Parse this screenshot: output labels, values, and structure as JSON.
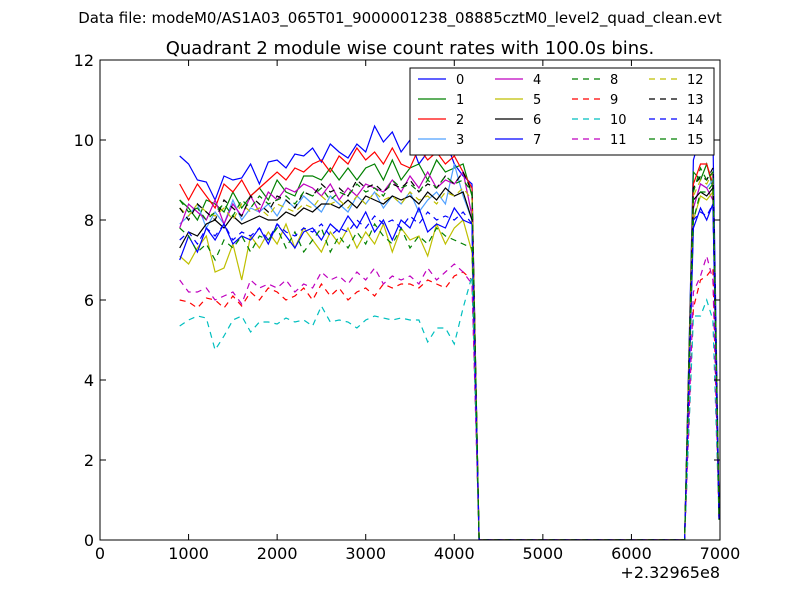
{
  "header": {
    "suptitle": "Data file: modeM0/AS1A03_065T01_9000001238_08885cztM0_level2_quad_clean.evt"
  },
  "chart_data": {
    "type": "line",
    "title": "Quadrant 2 module wise count rates with 100.0s bins.",
    "xlabel": "",
    "ylabel": "",
    "x_offset_label": "+2.32965e8",
    "xlim": [
      0,
      7000
    ],
    "ylim": [
      0,
      12
    ],
    "xticks": [
      0,
      1000,
      2000,
      3000,
      4000,
      5000,
      6000,
      7000
    ],
    "yticks": [
      0,
      2,
      4,
      6,
      8,
      10,
      12
    ],
    "grid": false,
    "legend": {
      "placement": "top-right",
      "columns": 4
    },
    "gap_x": [
      4300,
      4400,
      4500,
      4600,
      4700,
      4800,
      4900,
      5000,
      5100,
      5200,
      5300,
      5400,
      5500,
      5600,
      5700,
      5800,
      5900,
      6000,
      6100,
      6200,
      6300,
      6400,
      6500,
      6600
    ],
    "x": [
      900,
      1000,
      1100,
      1200,
      1300,
      1400,
      1500,
      1600,
      1700,
      1800,
      1900,
      2000,
      2100,
      2200,
      2300,
      2400,
      2500,
      2600,
      2700,
      2800,
      2900,
      3000,
      3100,
      3200,
      3300,
      3400,
      3500,
      3600,
      3700,
      3800,
      3900,
      4000,
      4100,
      4200,
      4280
    ],
    "x2": [
      6600,
      6700,
      6780,
      6850,
      6920,
      6990
    ],
    "series": [
      {
        "name": "0",
        "color": "#0000ff",
        "dash": "solid",
        "values": [
          9.6,
          9.4,
          9.0,
          8.95,
          8.5,
          9.1,
          9.0,
          9.05,
          9.4,
          8.9,
          9.45,
          9.5,
          9.3,
          9.65,
          9.6,
          9.8,
          9.45,
          9.9,
          9.7,
          9.55,
          9.9,
          9.7,
          10.35,
          9.95,
          10.2,
          9.7,
          10.0,
          9.4,
          9.7,
          10.1,
          10.0,
          9.4,
          9.1,
          8.9,
          0
        ],
        "values2": [
          0,
          9.5,
          10.1,
          9.8,
          10.1,
          0.6
        ]
      },
      {
        "name": "1",
        "color": "#008000",
        "dash": "solid",
        "values": [
          8.5,
          8.3,
          8.0,
          8.5,
          8.4,
          8.2,
          8.7,
          8.3,
          8.6,
          8.8,
          8.5,
          9.0,
          8.7,
          8.6,
          9.1,
          9.1,
          9.0,
          9.3,
          9.0,
          9.3,
          9.0,
          9.3,
          9.4,
          9.0,
          9.5,
          9.0,
          9.3,
          9.4,
          9.0,
          9.5,
          9.2,
          9.3,
          9.4,
          8.6,
          0
        ],
        "values2": [
          0,
          9.2,
          9.0,
          9.4,
          8.8,
          0.5
        ]
      },
      {
        "name": "2",
        "color": "#ff0000",
        "dash": "solid",
        "values": [
          8.9,
          8.5,
          8.9,
          8.6,
          8.3,
          8.9,
          8.7,
          9.0,
          8.6,
          8.8,
          9.0,
          9.2,
          9.0,
          9.3,
          9.2,
          9.4,
          9.5,
          9.2,
          9.6,
          9.4,
          9.8,
          9.5,
          9.7,
          9.4,
          9.8,
          9.4,
          9.3,
          9.8,
          9.5,
          9.7,
          9.4,
          9.6,
          9.2,
          8.8,
          0
        ],
        "values2": [
          0,
          8.9,
          9.4,
          9.4,
          8.9,
          0.6
        ]
      },
      {
        "name": "3",
        "color": "#4fa0ff",
        "dash": "solid",
        "values": [
          7.9,
          8.1,
          8.4,
          7.8,
          8.2,
          7.9,
          8.5,
          8.0,
          8.3,
          8.2,
          8.4,
          8.1,
          8.5,
          8.3,
          8.6,
          8.4,
          8.2,
          8.6,
          8.4,
          8.2,
          8.6,
          8.4,
          8.7,
          8.3,
          8.6,
          8.4,
          8.7,
          8.2,
          8.5,
          8.7,
          8.4,
          9.4,
          8.6,
          8.0,
          0
        ],
        "values2": [
          0,
          8.3,
          8.9,
          8.8,
          9.0,
          0.5
        ]
      },
      {
        "name": "4",
        "color": "#bf00bf",
        "dash": "solid",
        "values": [
          7.8,
          8.4,
          8.2,
          8.0,
          8.5,
          7.9,
          8.4,
          8.1,
          8.6,
          8.2,
          8.7,
          8.5,
          8.8,
          8.7,
          8.9,
          8.8,
          8.6,
          8.9,
          8.5,
          8.8,
          8.6,
          8.9,
          8.8,
          8.7,
          9.0,
          8.7,
          9.1,
          8.8,
          9.2,
          8.8,
          9.0,
          8.9,
          9.2,
          8.1,
          0
        ],
        "values2": [
          0,
          8.3,
          8.9,
          8.8,
          8.5,
          0.5
        ]
      },
      {
        "name": "5",
        "color": "#bfbf00",
        "dash": "solid",
        "values": [
          7.1,
          6.9,
          7.3,
          7.6,
          6.7,
          6.8,
          7.4,
          6.5,
          7.6,
          7.3,
          7.7,
          7.4,
          7.9,
          7.3,
          7.8,
          7.5,
          7.2,
          7.7,
          7.4,
          7.8,
          7.3,
          7.7,
          7.4,
          7.9,
          7.2,
          7.8,
          7.5,
          7.6,
          7.1,
          7.9,
          7.4,
          7.8,
          8.0,
          7.2,
          0
        ],
        "values2": [
          0,
          8.0,
          8.6,
          8.5,
          8.7,
          0.5
        ]
      },
      {
        "name": "6",
        "color": "#000000",
        "dash": "solid",
        "values": [
          7.3,
          7.7,
          7.6,
          7.9,
          8.0,
          7.8,
          8.1,
          7.9,
          8.0,
          8.1,
          8.0,
          8.0,
          8.2,
          8.1,
          8.3,
          8.2,
          8.4,
          8.4,
          8.3,
          8.5,
          8.3,
          8.6,
          8.5,
          8.4,
          8.6,
          8.5,
          8.6,
          8.4,
          8.7,
          8.5,
          8.8,
          8.6,
          8.7,
          8.0,
          0
        ],
        "values2": [
          0,
          8.5,
          8.7,
          8.6,
          8.8,
          0.5
        ]
      },
      {
        "name": "7",
        "color": "#0000ff",
        "dash": "solid",
        "values": [
          7.0,
          7.6,
          7.2,
          7.8,
          7.5,
          7.9,
          7.4,
          7.6,
          7.5,
          7.8,
          7.4,
          7.9,
          7.6,
          7.3,
          7.7,
          7.8,
          7.5,
          7.9,
          7.7,
          8.1,
          7.8,
          8.2,
          7.7,
          8.0,
          7.5,
          8.0,
          7.8,
          8.3,
          7.7,
          7.9,
          7.8,
          8.3,
          8.0,
          7.9,
          0
        ],
        "values2": [
          0,
          7.8,
          8.3,
          8.0,
          8.4,
          0.5
        ]
      },
      {
        "name": "8",
        "color": "#008000",
        "dash": "dashed",
        "values": [
          7.8,
          7.6,
          7.2,
          7.4,
          7.0,
          7.5,
          7.3,
          7.6,
          7.2,
          7.6,
          7.5,
          7.8,
          7.3,
          7.7,
          7.2,
          7.5,
          7.8,
          7.2,
          7.6,
          7.3,
          7.7,
          7.4,
          7.9,
          7.6,
          7.4,
          7.8,
          7.3,
          7.6,
          7.4,
          7.8,
          7.6,
          7.5,
          7.4,
          7.3,
          0
        ],
        "values2": [
          0,
          8.0,
          8.7,
          8.7,
          8.9,
          0.5
        ]
      },
      {
        "name": "9",
        "color": "#ff0000",
        "dash": "dashed",
        "values": [
          6.0,
          5.95,
          5.8,
          6.05,
          6.0,
          5.8,
          6.1,
          5.85,
          6.2,
          6.0,
          6.3,
          6.2,
          6.0,
          6.1,
          6.3,
          6.0,
          6.4,
          6.1,
          6.3,
          6.0,
          6.2,
          6.3,
          6.1,
          6.4,
          6.3,
          6.4,
          6.4,
          6.3,
          6.5,
          6.4,
          6.3,
          6.6,
          6.7,
          6.5,
          0
        ],
        "values2": [
          0,
          5.8,
          6.5,
          6.6,
          6.8,
          0.5
        ]
      },
      {
        "name": "10",
        "color": "#00bfbf",
        "dash": "dashed",
        "values": [
          5.35,
          5.5,
          5.6,
          5.55,
          4.75,
          5.1,
          5.5,
          5.6,
          5.2,
          5.45,
          5.45,
          5.4,
          5.55,
          5.45,
          5.5,
          5.35,
          5.85,
          5.45,
          5.5,
          5.45,
          5.3,
          5.5,
          5.6,
          5.55,
          5.5,
          5.55,
          5.5,
          5.5,
          4.95,
          5.3,
          5.3,
          4.9,
          5.8,
          6.6,
          0
        ],
        "values2": [
          0,
          5.6,
          5.6,
          6.0,
          5.5,
          0.5
        ]
      },
      {
        "name": "11",
        "color": "#bf00bf",
        "dash": "dashed",
        "values": [
          6.5,
          6.2,
          6.2,
          6.3,
          6.0,
          6.1,
          6.2,
          5.9,
          6.5,
          6.3,
          6.4,
          6.3,
          6.5,
          6.2,
          6.4,
          6.3,
          6.7,
          6.5,
          6.6,
          6.4,
          6.7,
          6.5,
          6.8,
          6.4,
          6.6,
          6.5,
          6.6,
          6.4,
          6.8,
          6.5,
          6.7,
          6.9,
          6.7,
          6.4,
          0
        ],
        "values2": [
          0,
          6.2,
          6.6,
          7.1,
          6.5,
          0.5
        ]
      },
      {
        "name": "12",
        "color": "#bfbf00",
        "dash": "dashed",
        "values": [
          8.3,
          8.1,
          8.4,
          8.2,
          8.1,
          8.3,
          8.0,
          8.4,
          8.2,
          8.3,
          8.1,
          8.4,
          8.3,
          8.2,
          8.4,
          8.3,
          8.6,
          8.4,
          8.5,
          8.3,
          8.6,
          8.4,
          8.7,
          8.5,
          8.6,
          8.4,
          8.7,
          8.5,
          8.6,
          8.4,
          8.7,
          8.6,
          8.8,
          8.5,
          0
        ],
        "values2": [
          0,
          8.6,
          9.0,
          8.9,
          9.2,
          0.5
        ]
      },
      {
        "name": "13",
        "color": "#000000",
        "dash": "dashed",
        "values": [
          8.3,
          8.0,
          8.4,
          8.2,
          8.0,
          8.5,
          8.3,
          8.1,
          8.6,
          8.4,
          8.2,
          8.6,
          8.5,
          8.3,
          8.7,
          8.6,
          8.9,
          8.7,
          8.8,
          8.6,
          9.0,
          8.8,
          8.9,
          8.7,
          8.9,
          8.8,
          9.0,
          8.7,
          8.9,
          8.8,
          9.1,
          8.9,
          9.2,
          8.7,
          0
        ],
        "values2": [
          0,
          8.8,
          9.1,
          9.0,
          9.3,
          0.5
        ]
      },
      {
        "name": "14",
        "color": "#0000ff",
        "dash": "dashed",
        "values": [
          7.5,
          7.7,
          7.4,
          7.8,
          7.6,
          7.9,
          7.5,
          7.7,
          7.6,
          7.8,
          7.5,
          7.9,
          7.7,
          7.6,
          7.8,
          7.7,
          7.9,
          7.6,
          7.8,
          7.7,
          8.0,
          7.8,
          8.1,
          7.9,
          8.0,
          7.8,
          8.1,
          7.9,
          8.2,
          8.0,
          8.1,
          8.0,
          8.2,
          7.9,
          0
        ],
        "values2": [
          0,
          8.0,
          8.2,
          8.1,
          8.4,
          0.5
        ]
      },
      {
        "name": "15",
        "color": "#008000",
        "dash": "dashed",
        "values": [
          8.5,
          8.2,
          8.3,
          8.0,
          8.2,
          8.4,
          8.1,
          8.5,
          8.3,
          8.6,
          8.4,
          8.5,
          8.6,
          8.4,
          8.7,
          8.6,
          8.8,
          8.5,
          8.7,
          8.6,
          8.9,
          8.7,
          8.8,
          8.6,
          9.0,
          8.8,
          8.9,
          8.7,
          9.0,
          8.8,
          9.1,
          8.9,
          9.0,
          8.7,
          0
        ],
        "values2": [
          0,
          8.7,
          9.3,
          9.0,
          9.2,
          0.5
        ]
      }
    ]
  }
}
